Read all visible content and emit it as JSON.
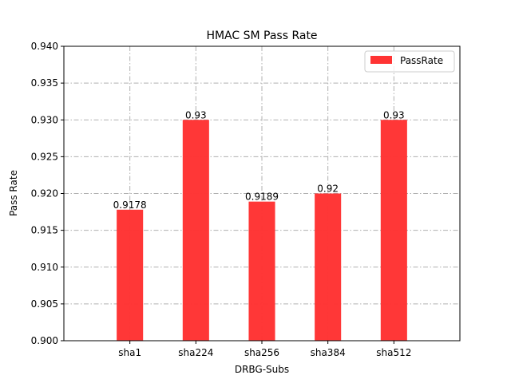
{
  "chart_data": {
    "type": "bar",
    "title": "HMAC SM Pass Rate",
    "xlabel": "DRBG-Subs",
    "ylabel": "Pass Rate",
    "categories": [
      "sha1",
      "sha224",
      "sha256",
      "sha384",
      "sha512"
    ],
    "values": [
      0.9178,
      0.93,
      0.9189,
      0.92,
      0.93
    ],
    "data_labels": [
      "0.9178",
      "0.93",
      "0.9189",
      "0.92",
      "0.93"
    ],
    "ylim": [
      0.9,
      0.94
    ],
    "yticks": [
      "0.900",
      "0.905",
      "0.910",
      "0.915",
      "0.920",
      "0.925",
      "0.930",
      "0.935",
      "0.940"
    ],
    "grid": true,
    "legend": {
      "label": "PassRate",
      "placement": "upper right"
    },
    "bar_color": "#ff3333"
  }
}
